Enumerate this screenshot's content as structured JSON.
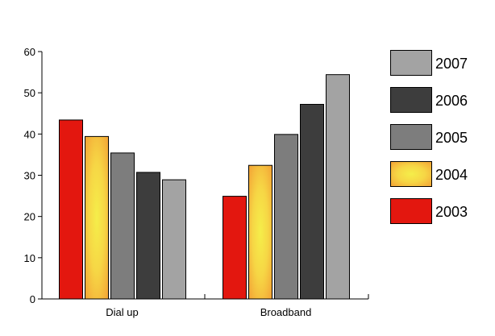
{
  "chart_data": {
    "type": "bar",
    "categories": [
      "Dial up",
      "Broadband"
    ],
    "series": [
      {
        "name": "2003",
        "values": [
          43.5,
          25
        ],
        "color": "#e3170f"
      },
      {
        "name": "2004",
        "values": [
          39.5,
          32.5
        ],
        "color": "#f4a93a"
      },
      {
        "name": "2005",
        "values": [
          35.5,
          40
        ],
        "color": "#7d7d7d"
      },
      {
        "name": "2006",
        "values": [
          30.8,
          47.3
        ],
        "color": "#3d3d3d"
      },
      {
        "name": "2007",
        "values": [
          29,
          54.5
        ],
        "color": "#a3a3a3"
      }
    ],
    "ylim": [
      0,
      60
    ],
    "yticks": [
      0,
      10,
      20,
      30,
      40,
      50,
      60
    ],
    "ytick_labels": [
      "0",
      "10",
      "20",
      "30",
      "40",
      "50",
      "60"
    ],
    "xlabel": "",
    "ylabel": "",
    "title": "",
    "grid": false,
    "legend": {
      "placement": "right",
      "order": [
        "2007",
        "2006",
        "2005",
        "2004",
        "2003"
      ]
    }
  }
}
